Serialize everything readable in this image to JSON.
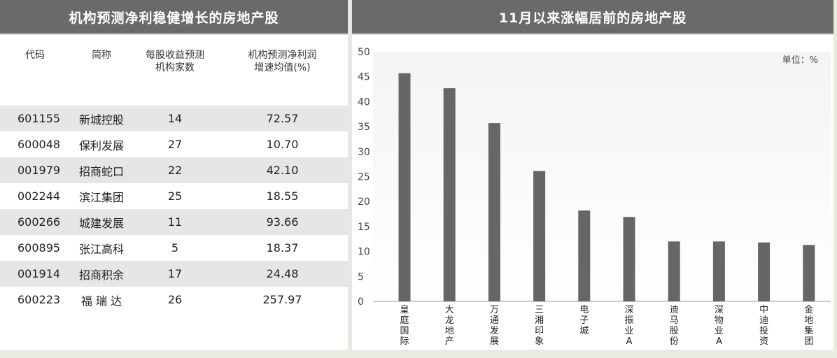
{
  "left": {
    "title": "机构预测净利稳健增长的房地产股",
    "headers": [
      "代码",
      "简称",
      "每股收益预测\n机构家数",
      "机构预测净利润\n增速均值(%)"
    ],
    "rows": [
      {
        "code": "601155",
        "name": "新城控股",
        "count": "14",
        "growth": "72.57"
      },
      {
        "code": "600048",
        "name": "保利发展",
        "count": "27",
        "growth": "10.70"
      },
      {
        "code": "001979",
        "name": "招商蛇口",
        "count": "22",
        "growth": "42.10"
      },
      {
        "code": "002244",
        "name": "滨江集团",
        "count": "25",
        "growth": "18.55"
      },
      {
        "code": "600266",
        "name": "城建发展",
        "count": "11",
        "growth": "93.66"
      },
      {
        "code": "600895",
        "name": "张江高科",
        "count": "5",
        "growth": "18.37"
      },
      {
        "code": "001914",
        "name": "招商积余",
        "count": "17",
        "growth": "24.48"
      },
      {
        "code": "600223",
        "name": "福 瑞 达",
        "count": "26",
        "growth": "257.97"
      }
    ]
  },
  "right": {
    "title": "11月以来涨幅居前的房地产股",
    "unit": "单位：%"
  },
  "chart_data": {
    "type": "bar",
    "categories": [
      "皇庭国际",
      "大龙地产",
      "万通发展",
      "三湘印象",
      "电子城",
      "深振业A",
      "迪马股份",
      "深物业A",
      "中迪投资",
      "金地集团"
    ],
    "values": [
      45.7,
      42.7,
      35.7,
      26.1,
      18.2,
      16.9,
      12.0,
      12.0,
      11.8,
      11.3
    ],
    "ylim": [
      0,
      50
    ],
    "yticks": [
      0,
      5,
      10,
      15,
      20,
      25,
      30,
      35,
      40,
      45,
      50
    ],
    "grid": false,
    "bar_color": "#666666"
  }
}
